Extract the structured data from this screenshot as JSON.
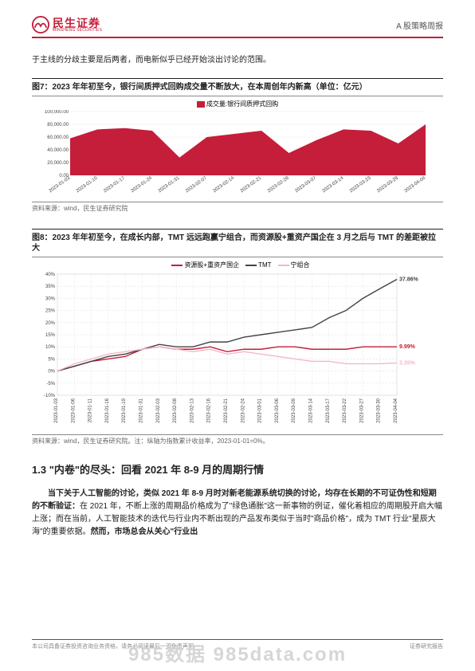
{
  "header": {
    "logo_cn": "民生证券",
    "logo_en": "MINSHENG SECURITIES",
    "logo_color": "#c41e3a",
    "right_label": "A 股策略周报"
  },
  "intro_text": "于主线的分歧主要是后两者，而电新似乎已经开始淡出讨论的范围。",
  "chart7": {
    "type": "area",
    "title": "图7：2023 年年初至今，银行间质押式回购成交量不断放大，在本周创年内新高（单位：亿元）",
    "legend_label": "成交量:银行间质押式回购",
    "series_color": "#c41e3a",
    "background_color": "#ffffff",
    "grid_color": "#e8e8e8",
    "text_color": "#444444",
    "label_fontsize": 6,
    "ylim": [
      0,
      100000
    ],
    "ytick_step": 20000,
    "yticks": [
      "0.00",
      "20,000.00",
      "40,000.00",
      "60,000.00",
      "80,000.00",
      "100,000.00"
    ],
    "x_labels": [
      "2023-01-03",
      "2023-01-10",
      "2023-01-17",
      "2023-01-24",
      "2023-01-31",
      "2023-02-07",
      "2023-02-14",
      "2023-02-21",
      "2023-02-28",
      "2023-03-07",
      "2023-03-14",
      "2023-03-23",
      "2023-03-28",
      "2023-04-04"
    ],
    "values": [
      58000,
      72000,
      74000,
      70000,
      28000,
      60000,
      65000,
      70000,
      35000,
      55000,
      72000,
      70000,
      50000,
      80000
    ],
    "source": "资料来源：wind，民生证券研究院"
  },
  "chart8": {
    "type": "line",
    "title": "图8：2023 年年初至今，在成长内部，TMT 远远跑赢宁组合，而资源股+重资产国企在 3 月之后与 TMT 的差距被拉大",
    "background_color": "#ffffff",
    "grid_color": "#d9d9d9",
    "text_color": "#444444",
    "label_fontsize": 6,
    "legend": [
      {
        "label": "资源股+重资产国企",
        "color": "#c41e3a"
      },
      {
        "label": "TMT",
        "color": "#444444"
      },
      {
        "label": "宁组合",
        "color": "#f4b8c4"
      }
    ],
    "ylim": [
      -10,
      40
    ],
    "ytick_step": 5,
    "yticks": [
      "-10%",
      "-5%",
      "0%",
      "5%",
      "10%",
      "15%",
      "20%",
      "25%",
      "30%",
      "35%",
      "40%"
    ],
    "x_labels": [
      "2023-01-03",
      "2023-01-06",
      "2023-01-11",
      "2023-01-16",
      "2023-01-19",
      "2023-01-31",
      "2023-02-03",
      "2023-02-08",
      "2023-02-13",
      "2023-02-16",
      "2023-02-21",
      "2023-02-24",
      "2023-03-01",
      "2023-03-06",
      "2023-03-09",
      "2023-03-14",
      "2023-03-17",
      "2023-03-22",
      "2023-03-27",
      "2023-03-30",
      "2023-04-04"
    ],
    "series": {
      "resource": [
        0,
        2,
        4,
        5,
        6,
        9,
        10,
        9,
        9,
        10,
        8,
        9,
        9,
        10,
        10,
        9,
        9,
        9,
        10,
        10,
        9.99
      ],
      "tmt": [
        0,
        2,
        4,
        6,
        7,
        9,
        11,
        10,
        10,
        12,
        12,
        14,
        15,
        16,
        17,
        18,
        22,
        25,
        30,
        34,
        37.86
      ],
      "ning": [
        0,
        3,
        5,
        7,
        8,
        9,
        10,
        9,
        8,
        9,
        7,
        8,
        7,
        6,
        5,
        4,
        4,
        3,
        3,
        3,
        3.35
      ]
    },
    "end_labels": [
      {
        "value": "37.86%",
        "color": "#444444",
        "y": 37.86
      },
      {
        "value": "9.99%",
        "color": "#c41e3a",
        "y": 9.99
      },
      {
        "value": "3.35%",
        "color": "#f4b8c4",
        "y": 3.35
      }
    ],
    "source": "资料来源：wind，民生证券研究院。注：纵轴为指数累计收益率，2023-01-01=0%。"
  },
  "section": {
    "number": "1.3",
    "title": "\"内卷\"的尽头：回看 2021 年 8-9 月的周期行情"
  },
  "body_para": {
    "bold_lead": "当下关于人工智能的讨论，类似 2021 年 8-9 月时对新老能源系统切换的讨论，均存在长期的不可证伪性和短期的不断验证：",
    "rest": "在 2021 年，不断上涨的周期品价格成为了\"绿色通胀\"这一新事物的例证，催化着相应的周期股开启大幅上涨；而在当前，人工智能技术的迭代与行业内不断出现的产品发布类似于当时\"商品价格\"，成为 TMT 行业\"星辰大海\"的重要依据。",
    "bold_tail": "然而，市场总会从关心\"行业出"
  },
  "footer": {
    "left": "本公司具备证券投资咨询业务资格，请务必阅读最后一页免责声明",
    "right": "证券研究报告"
  },
  "watermark": "985数据 985data.com"
}
